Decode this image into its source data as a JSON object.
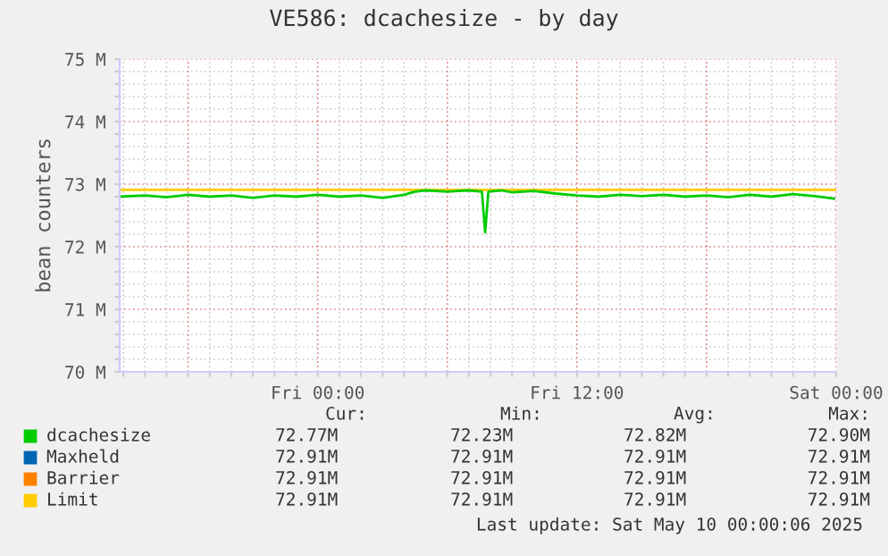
{
  "chart_data": {
    "type": "line",
    "title": "VE586: dcachesize - by day",
    "ylabel": "bean counters",
    "xlim": [
      "2025-05-08T14:50",
      "2025-05-10T00:00"
    ],
    "ylim": [
      70,
      75
    ],
    "xticks": [
      {
        "value": "2025-05-08T15:00",
        "label": null
      },
      {
        "value": "2025-05-08T16:00",
        "label": null
      },
      {
        "value": "2025-05-08T17:00",
        "label": null
      },
      {
        "value": "2025-05-08T18:00",
        "label": null
      },
      {
        "value": "2025-05-08T19:00",
        "label": null
      },
      {
        "value": "2025-05-08T20:00",
        "label": null
      },
      {
        "value": "2025-05-08T21:00",
        "label": null
      },
      {
        "value": "2025-05-08T22:00",
        "label": null
      },
      {
        "value": "2025-05-08T23:00",
        "label": null
      },
      {
        "value": "2025-05-09T00:00",
        "label": "Fri 00:00"
      },
      {
        "value": "2025-05-09T01:00",
        "label": null
      },
      {
        "value": "2025-05-09T02:00",
        "label": null
      },
      {
        "value": "2025-05-09T03:00",
        "label": null
      },
      {
        "value": "2025-05-09T04:00",
        "label": null
      },
      {
        "value": "2025-05-09T05:00",
        "label": null
      },
      {
        "value": "2025-05-09T06:00",
        "label": null
      },
      {
        "value": "2025-05-09T07:00",
        "label": null
      },
      {
        "value": "2025-05-09T08:00",
        "label": null
      },
      {
        "value": "2025-05-09T09:00",
        "label": null
      },
      {
        "value": "2025-05-09T10:00",
        "label": null
      },
      {
        "value": "2025-05-09T11:00",
        "label": null
      },
      {
        "value": "2025-05-09T12:00",
        "label": "Fri 12:00"
      },
      {
        "value": "2025-05-09T13:00",
        "label": null
      },
      {
        "value": "2025-05-09T14:00",
        "label": null
      },
      {
        "value": "2025-05-09T15:00",
        "label": null
      },
      {
        "value": "2025-05-09T16:00",
        "label": null
      },
      {
        "value": "2025-05-09T17:00",
        "label": null
      },
      {
        "value": "2025-05-09T18:00",
        "label": null
      },
      {
        "value": "2025-05-09T19:00",
        "label": null
      },
      {
        "value": "2025-05-09T20:00",
        "label": null
      },
      {
        "value": "2025-05-09T21:00",
        "label": null
      },
      {
        "value": "2025-05-09T22:00",
        "label": null
      },
      {
        "value": "2025-05-09T23:00",
        "label": null
      },
      {
        "value": "2025-05-10T00:00",
        "label": "Sat 00:00"
      }
    ],
    "yticks": [
      {
        "value": 70,
        "label": "70 M"
      },
      {
        "value": 70.2,
        "label": null
      },
      {
        "value": 70.4,
        "label": null
      },
      {
        "value": 70.6,
        "label": null
      },
      {
        "value": 70.8,
        "label": null
      },
      {
        "value": 71,
        "label": "71 M"
      },
      {
        "value": 71.2,
        "label": null
      },
      {
        "value": 71.4,
        "label": null
      },
      {
        "value": 71.6,
        "label": null
      },
      {
        "value": 71.8,
        "label": null
      },
      {
        "value": 72,
        "label": "72 M"
      },
      {
        "value": 72.2,
        "label": null
      },
      {
        "value": 72.4,
        "label": null
      },
      {
        "value": 72.6,
        "label": null
      },
      {
        "value": 72.8,
        "label": null
      },
      {
        "value": 73,
        "label": "73 M"
      },
      {
        "value": 73.2,
        "label": null
      },
      {
        "value": 73.4,
        "label": null
      },
      {
        "value": 73.6,
        "label": null
      },
      {
        "value": 73.8,
        "label": null
      },
      {
        "value": 74,
        "label": "74 M"
      },
      {
        "value": 74.2,
        "label": null
      },
      {
        "value": 74.4,
        "label": null
      },
      {
        "value": 74.6,
        "label": null
      },
      {
        "value": 74.8,
        "label": null
      },
      {
        "value": 75,
        "label": "75 M"
      }
    ],
    "grid": true,
    "legend": "bottom",
    "marker": "none",
    "line_style": "solid",
    "series": [
      {
        "name": "Maxheld",
        "color": "#0066b3"
      },
      {
        "name": "Barrier",
        "color": "#ff8000"
      },
      {
        "name": "Limit",
        "color": "#ffcc00",
        "x": [
          "2025-05-08T14:50",
          "2025-05-10T00:00"
        ],
        "values": [
          72.91,
          72.91
        ]
      },
      {
        "name": "dcachesize",
        "color": "#00cc00",
        "x": [
          "2025-05-08T14:50",
          "2025-05-08T16:00",
          "2025-05-08T17:00",
          "2025-05-08T18:00",
          "2025-05-08T19:00",
          "2025-05-08T20:00",
          "2025-05-08T21:00",
          "2025-05-08T22:00",
          "2025-05-08T23:00",
          "2025-05-09T00:00",
          "2025-05-09T01:00",
          "2025-05-09T02:00",
          "2025-05-09T03:00",
          "2025-05-09T04:00",
          "2025-05-09T04:30",
          "2025-05-09T05:00",
          "2025-05-09T06:00",
          "2025-05-09T07:00",
          "2025-05-09T07:36",
          "2025-05-09T07:45",
          "2025-05-09T07:54",
          "2025-05-09T08:30",
          "2025-05-09T09:00",
          "2025-05-09T10:00",
          "2025-05-09T11:00",
          "2025-05-09T12:00",
          "2025-05-09T13:00",
          "2025-05-09T14:00",
          "2025-05-09T15:00",
          "2025-05-09T16:00",
          "2025-05-09T17:00",
          "2025-05-09T18:00",
          "2025-05-09T19:00",
          "2025-05-09T20:00",
          "2025-05-09T21:00",
          "2025-05-09T22:00",
          "2025-05-09T23:00",
          "2025-05-09T23:54"
        ],
        "values": [
          72.8,
          72.82,
          72.79,
          72.83,
          72.8,
          72.82,
          72.78,
          72.82,
          72.8,
          72.83,
          72.8,
          72.82,
          72.78,
          72.83,
          72.88,
          72.9,
          72.88,
          72.9,
          72.88,
          72.23,
          72.88,
          72.9,
          72.87,
          72.89,
          72.85,
          72.82,
          72.8,
          72.83,
          72.81,
          72.83,
          72.8,
          72.82,
          72.79,
          72.83,
          72.8,
          72.84,
          72.81,
          72.77
        ]
      }
    ],
    "annotations": [
      "Cur:",
      "Min:",
      "Avg:",
      "Max:",
      "72.77M",
      "72.23M",
      "72.82M",
      "72.90M",
      "72.91M",
      "72.91M",
      "72.91M",
      "72.91M",
      "72.91M",
      "72.91M",
      "72.91M",
      "72.91M",
      "72.91M",
      "72.91M",
      "72.91M",
      "72.91M",
      "Last update: Sat May 10 00:00:06 2025"
    ]
  }
}
